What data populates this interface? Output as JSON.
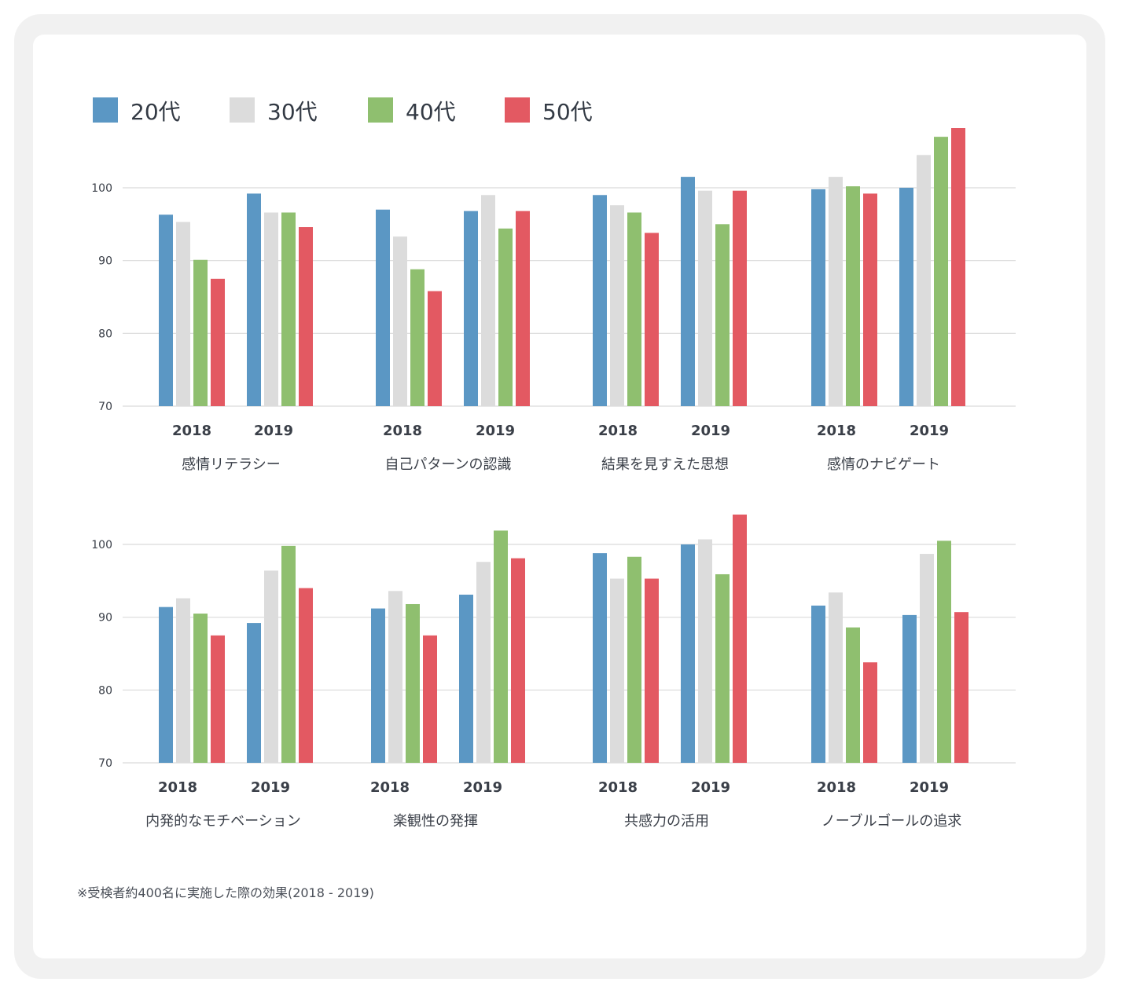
{
  "colors": {
    "20s": "#5b97c4",
    "30s": "#dcdcdc",
    "40s": "#8fbf6f",
    "50s": "#e35962",
    "grid": "#d9d9d9",
    "frame": "#f1f1f1"
  },
  "note": "※受検者約400名に実施した際の効果(2018 - 2019)",
  "chart_data": {
    "type": "bar",
    "ylim": [
      70,
      105
    ],
    "yticks": [
      "70",
      "80",
      "90",
      "100"
    ],
    "grid": true,
    "legend_position": "top-left",
    "series_names": [
      "20代",
      "30代",
      "40代",
      "50代"
    ],
    "years": [
      "2018",
      "2019"
    ],
    "groups": [
      {
        "label": "感情リテラシー",
        "values": {
          "2018": [
            96.3,
            95.3,
            90.1,
            87.5
          ],
          "2019": [
            99.2,
            96.6,
            96.6,
            94.6
          ]
        }
      },
      {
        "label": "自己パターンの認識",
        "values": {
          "2018": [
            97.0,
            93.3,
            88.8,
            85.8
          ],
          "2019": [
            96.8,
            99.0,
            94.4,
            96.8
          ]
        }
      },
      {
        "label": "結果を見すえた思想",
        "values": {
          "2018": [
            99.0,
            97.6,
            96.6,
            93.8
          ],
          "2019": [
            101.5,
            99.6,
            95.0,
            99.6
          ]
        }
      },
      {
        "label": "感情のナビゲート",
        "values": {
          "2018": [
            99.8,
            101.5,
            100.2,
            99.2
          ],
          "2019": [
            100.0,
            104.5,
            107.0,
            108.2
          ]
        }
      },
      {
        "label": "内発的なモチベーション",
        "values": {
          "2018": [
            91.4,
            92.6,
            90.5,
            87.5
          ],
          "2019": [
            89.2,
            96.4,
            99.8,
            94.0
          ]
        }
      },
      {
        "label": "楽観性の発揮",
        "values": {
          "2018": [
            91.2,
            93.6,
            91.8,
            87.5
          ],
          "2019": [
            93.1,
            97.6,
            101.9,
            98.1
          ]
        }
      },
      {
        "label": "共感力の活用",
        "values": {
          "2018": [
            98.8,
            95.3,
            98.3,
            95.3
          ],
          "2019": [
            100.0,
            100.7,
            95.9,
            104.1
          ]
        }
      },
      {
        "label": "ノーブルゴールの追求",
        "values": {
          "2018": [
            91.6,
            93.4,
            88.6,
            83.8
          ],
          "2019": [
            90.3,
            98.7,
            100.5,
            90.7
          ]
        }
      }
    ]
  }
}
